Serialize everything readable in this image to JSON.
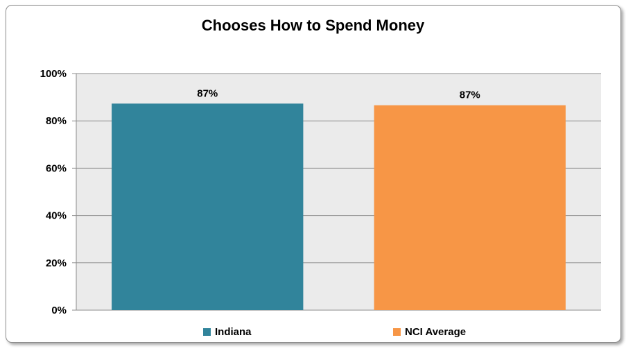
{
  "chart_data": {
    "type": "bar",
    "title": "Chooses How to Spend Money",
    "categories": [
      "Indiana",
      "NCI Average"
    ],
    "values": [
      87.3,
      86.6
    ],
    "data_labels": [
      "87%",
      "87%"
    ],
    "colors": [
      "#31849b",
      "#f79646"
    ],
    "ylim": [
      0,
      100
    ],
    "yticks": [
      "0%",
      "20%",
      "40%",
      "60%",
      "80%",
      "100%"
    ],
    "ytick_values": [
      0,
      20,
      40,
      60,
      80,
      100
    ],
    "xlabel": "",
    "ylabel": "",
    "grid": true,
    "plot_background": "#ebebeb",
    "legend_position": "bottom",
    "legend": [
      "Indiana",
      "NCI Average"
    ]
  }
}
